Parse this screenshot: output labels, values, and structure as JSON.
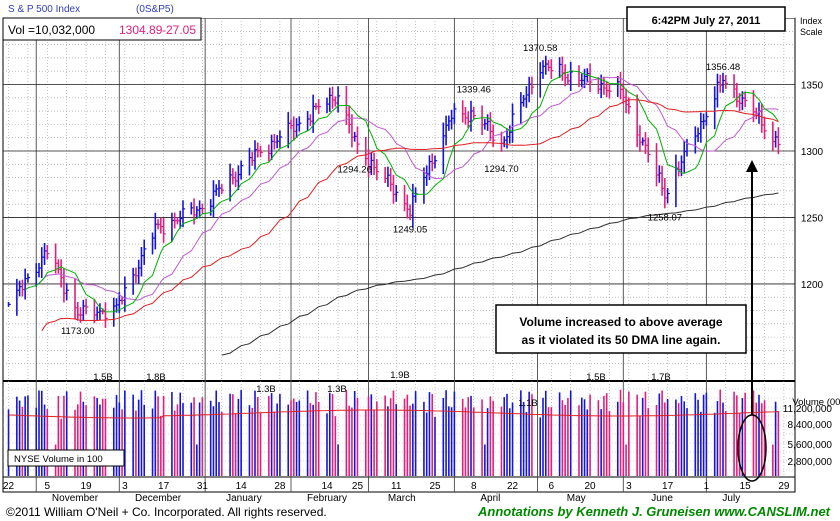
{
  "header": {
    "index_name": "S & P 500 Index",
    "symbol": "(0S&P5)",
    "vol_label": "Vol =10,032,000",
    "price": "1304.89",
    "change": "-27.05",
    "datetime": "6:42PM July 27, 2011",
    "scale_label_1": "Index",
    "scale_label_2": "Scale",
    "volume_scale_label": "Volume (00)",
    "nyse_label": "NYSE Volume in 100"
  },
  "annotation": {
    "line1": "Volume increased to above average",
    "line2": "as it violated its 50 DMA line again."
  },
  "footer": {
    "copyright": "©2011 William O'Neil + Co. Incorporated. All rights reserved.",
    "credit": "Annotations by Kenneth J. Gruneisen  www.CANSLIM.net"
  },
  "colors": {
    "up_bar": "#1515d8",
    "down_bar": "#e0207c",
    "ma_short": "#00b000",
    "ma_mid": "#c05ad0",
    "ma_50": "#e02020",
    "ma_200": "#303030",
    "vol_avg": "#e02020"
  },
  "chart_data": {
    "type": "ohlc",
    "title": "S & P 500 Index",
    "ylabel": "Index Scale",
    "price_ylim": [
      1127,
      1400
    ],
    "price_ticks": [
      1200,
      1250,
      1300,
      1350
    ],
    "volume_ylabel": "Volume (00)",
    "volume_ticks": [
      "11,200,000",
      "8,400,000",
      "5,600,000",
      "2,800,000"
    ],
    "x_day_labels": [
      "22",
      "5",
      "19",
      "3",
      "17",
      "31",
      "14",
      "28",
      "14",
      "25",
      "11",
      "25",
      "8",
      "22",
      "6",
      "20",
      "3",
      "17",
      "1",
      "15",
      "29"
    ],
    "x_month_labels": [
      "November",
      "December",
      "January",
      "February",
      "March",
      "April",
      "May",
      "June",
      "July"
    ],
    "price_annotations": [
      {
        "label": "1173.00",
        "value": 1173.0,
        "date": "2010-11-16"
      },
      {
        "label": "1294.26",
        "value": 1294.26,
        "date": "2011-02-24"
      },
      {
        "label": "1249.05",
        "value": 1249.05,
        "date": "2011-03-16"
      },
      {
        "label": "1339.46",
        "value": 1339.46,
        "date": "2011-04-08"
      },
      {
        "label": "1294.70",
        "value": 1294.7,
        "date": "2011-04-18"
      },
      {
        "label": "1370.58",
        "value": 1370.58,
        "date": "2011-05-02"
      },
      {
        "label": "1258.07",
        "value": 1258.07,
        "date": "2011-06-16"
      },
      {
        "label": "1356.48",
        "value": 1356.48,
        "date": "2011-07-07"
      }
    ],
    "volume_annotations": [
      "1.5B",
      "1.8B",
      "1.3B",
      "1.3B",
      "1.9B",
      "1.1B",
      "1.5B",
      "1.7B"
    ],
    "close_path": [
      {
        "date": "2010-10-22",
        "close": 1183
      },
      {
        "date": "2010-11-05",
        "close": 1225
      },
      {
        "date": "2010-11-16",
        "close": 1178
      },
      {
        "date": "2010-11-30",
        "close": 1181
      },
      {
        "date": "2010-12-14",
        "close": 1241
      },
      {
        "date": "2010-12-31",
        "close": 1258
      },
      {
        "date": "2011-01-18",
        "close": 1295
      },
      {
        "date": "2011-02-18",
        "close": 1343
      },
      {
        "date": "2011-02-24",
        "close": 1306
      },
      {
        "date": "2011-03-16",
        "close": 1256
      },
      {
        "date": "2011-03-31",
        "close": 1326
      },
      {
        "date": "2011-04-08",
        "close": 1328
      },
      {
        "date": "2011-04-18",
        "close": 1305
      },
      {
        "date": "2011-05-02",
        "close": 1364
      },
      {
        "date": "2011-05-31",
        "close": 1345
      },
      {
        "date": "2011-06-16",
        "close": 1268
      },
      {
        "date": "2011-07-07",
        "close": 1353
      },
      {
        "date": "2011-07-19",
        "close": 1327
      },
      {
        "date": "2011-07-27",
        "close": 1304.89
      }
    ],
    "latest": {
      "date": "2011-07-27",
      "close": 1304.89,
      "change": -27.05,
      "volume": 10032000
    },
    "series": [
      {
        "name": "50 DMA",
        "note": "red moving average line"
      }
    ]
  }
}
